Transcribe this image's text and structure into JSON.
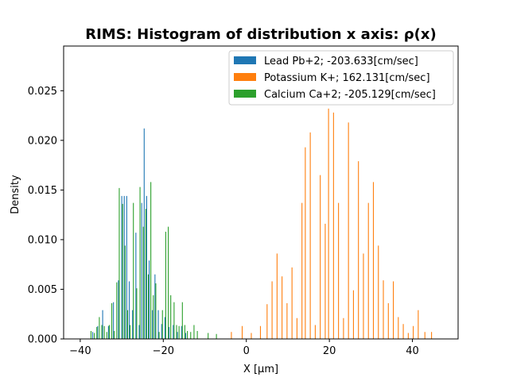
{
  "chart_data": {
    "type": "bar",
    "title": "RIMS: Histogram of distribution x axis: ρ(x)",
    "xlabel": "X [μm]",
    "ylabel": "Density",
    "xlim": [
      -44,
      51
    ],
    "ylim": [
      0,
      0.0295
    ],
    "xticks": [
      -40,
      -20,
      0,
      20,
      40
    ],
    "xtick_labels": [
      "−40",
      "−20",
      "0",
      "20",
      "40"
    ],
    "yticks": [
      0.0,
      0.005,
      0.01,
      0.015,
      0.02,
      0.025
    ],
    "ytick_labels": [
      "0.000",
      "0.005",
      "0.010",
      "0.015",
      "0.020",
      "0.025"
    ],
    "grid": false,
    "legend_position": "top-right",
    "series": [
      {
        "name": "Lead Pb+2; -203.633[cm/sec]",
        "color": "#1f77b4",
        "bar_width": 0.15,
        "x": [
          -37.0,
          -35.8,
          -34.6,
          -33.2,
          -32.0,
          -30.8,
          -30.0,
          -29.4,
          -28.8,
          -28.2,
          -27.4,
          -26.6,
          -25.8,
          -25.2,
          -24.6,
          -24.0,
          -23.4,
          -22.6,
          -22.0,
          -21.2,
          -20.4,
          -19.6,
          -18.6,
          -17.6,
          -16.6,
          -15.6,
          -14.6
        ],
        "values": [
          0.0007,
          0.0013,
          0.0029,
          0.0013,
          0.0037,
          0.0059,
          0.0144,
          0.0144,
          0.0144,
          0.0058,
          0.0029,
          0.0107,
          0.0014,
          0.0137,
          0.0212,
          0.0144,
          0.0079,
          0.0029,
          0.0065,
          0.0029,
          0.0015,
          0.0022,
          0.0012,
          0.0014,
          0.0007,
          0.0013,
          0.0006
        ]
      },
      {
        "name": "Potassium K+; 162.131[cm/sec]",
        "color": "#ff7f0e",
        "bar_width": 0.15,
        "x": [
          -3.6,
          -1.0,
          1.2,
          3.4,
          5.0,
          6.2,
          7.4,
          8.6,
          9.8,
          11.0,
          12.2,
          13.4,
          14.2,
          15.4,
          16.6,
          17.8,
          19.0,
          19.8,
          21.0,
          22.2,
          23.4,
          24.6,
          25.8,
          27.0,
          28.2,
          29.4,
          30.6,
          31.8,
          33.0,
          34.2,
          35.4,
          36.6,
          37.8,
          39.0,
          40.2,
          41.4,
          43.0,
          44.6
        ],
        "values": [
          0.0007,
          0.0013,
          0.0006,
          0.0013,
          0.0035,
          0.0058,
          0.0086,
          0.0063,
          0.0036,
          0.0072,
          0.0021,
          0.0137,
          0.0193,
          0.0208,
          0.0014,
          0.0165,
          0.0116,
          0.0232,
          0.0228,
          0.0137,
          0.0021,
          0.0218,
          0.0049,
          0.0179,
          0.0086,
          0.0137,
          0.0158,
          0.0094,
          0.0059,
          0.0036,
          0.0058,
          0.0022,
          0.0015,
          0.0006,
          0.0013,
          0.0029,
          0.0007,
          0.0007
        ]
      },
      {
        "name": "Calcium Ca+2; -205.129[cm/sec]",
        "color": "#2ca02c",
        "bar_width": 0.15,
        "x": [
          -37.4,
          -36.6,
          -36.0,
          -35.4,
          -34.8,
          -34.2,
          -33.6,
          -33.0,
          -32.4,
          -31.8,
          -31.2,
          -30.6,
          -29.8,
          -29.2,
          -28.6,
          -28.0,
          -27.2,
          -26.4,
          -25.6,
          -24.8,
          -24.2,
          -23.6,
          -23.0,
          -22.4,
          -21.8,
          -21.0,
          -20.2,
          -19.4,
          -18.8,
          -18.2,
          -17.4,
          -16.8,
          -16.2,
          -15.4,
          -14.8,
          -14.2,
          -13.4,
          -12.6,
          -11.8,
          -9.2,
          -7.2
        ],
        "values": [
          0.0008,
          0.0006,
          0.0012,
          0.0022,
          0.0014,
          0.0013,
          0.0007,
          0.0014,
          0.0036,
          0.0008,
          0.0057,
          0.0152,
          0.0136,
          0.0094,
          0.0029,
          0.0014,
          0.0137,
          0.0051,
          0.0153,
          0.0113,
          0.0131,
          0.0065,
          0.0158,
          0.0044,
          0.0056,
          0.0007,
          0.0029,
          0.0108,
          0.0113,
          0.0044,
          0.0037,
          0.0014,
          0.0013,
          0.0037,
          0.0014,
          0.0008,
          0.0007,
          0.0014,
          0.0008,
          0.0006,
          0.0005
        ]
      }
    ]
  }
}
